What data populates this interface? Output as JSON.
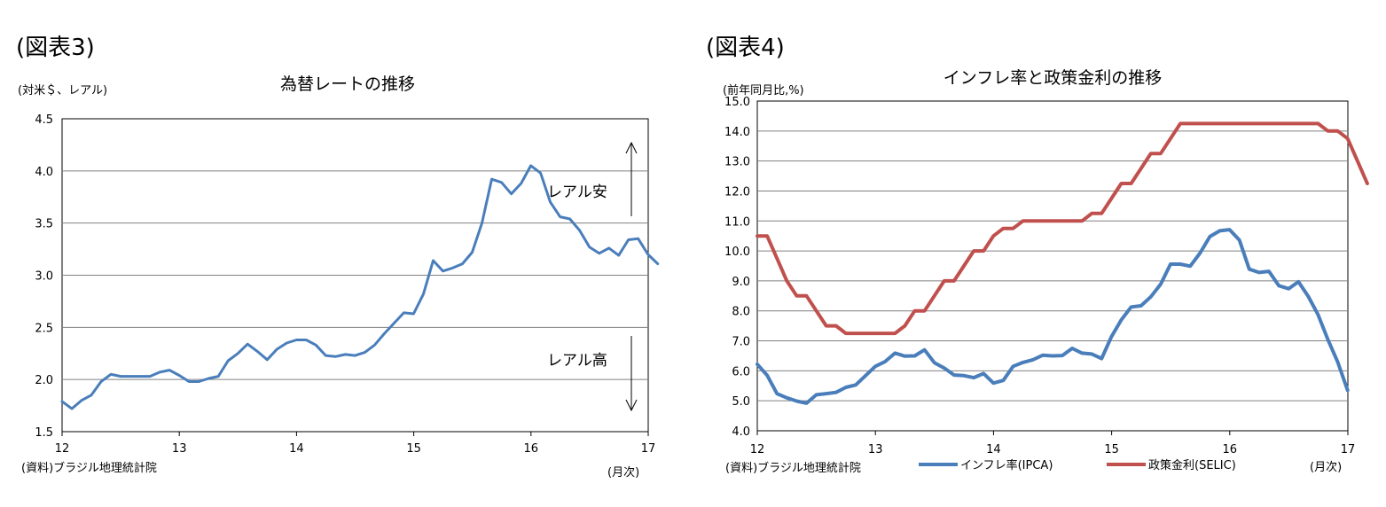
{
  "chart_data": [
    {
      "type": "line",
      "figure_label": "(図表3)",
      "title": "為替レートの推移",
      "unit_label": "(対米＄、レアル)",
      "source": "(資料)ブラジル地理統計院",
      "x_unit": "(月次)",
      "x_ticks": [
        "12",
        "13",
        "14",
        "15",
        "16",
        "17"
      ],
      "ylim": [
        1.5,
        4.5
      ],
      "y_ticks": [
        "1.5",
        "2.0",
        "2.5",
        "3.0",
        "3.5",
        "4.0",
        "4.5"
      ],
      "grid": true,
      "annotations": {
        "up_label": "レアル安",
        "down_label": "レアル高"
      },
      "series": [
        {
          "name": "",
          "color": "#4a7ebb",
          "x_start": 12.0,
          "x_step": 0.0833,
          "values": [
            1.79,
            1.72,
            1.8,
            1.85,
            1.98,
            2.05,
            2.03,
            2.03,
            2.03,
            2.03,
            2.07,
            2.09,
            2.04,
            1.98,
            1.98,
            2.01,
            2.03,
            2.18,
            2.25,
            2.34,
            2.27,
            2.19,
            2.29,
            2.35,
            2.38,
            2.38,
            2.33,
            2.23,
            2.22,
            2.24,
            2.23,
            2.26,
            2.33,
            2.44,
            2.54,
            2.64,
            2.63,
            2.82,
            3.14,
            3.04,
            3.07,
            3.11,
            3.22,
            3.5,
            3.92,
            3.89,
            3.78,
            3.88,
            4.05,
            3.98,
            3.7,
            3.56,
            3.54,
            3.43,
            3.27,
            3.21,
            3.26,
            3.19,
            3.34,
            3.35,
            3.2,
            3.11
          ]
        }
      ]
    },
    {
      "type": "line",
      "figure_label": "(図表4)",
      "title": "インフレ率と政策金利の推移",
      "unit_label": "(前年同月比,%)",
      "source": "(資料)ブラジル地理統計院",
      "x_unit": "(月次)",
      "x_ticks": [
        "12",
        "13",
        "14",
        "15",
        "16",
        "17"
      ],
      "ylim": [
        4.0,
        15.0
      ],
      "y_ticks": [
        "4.0",
        "5.0",
        "6.0",
        "7.0",
        "8.0",
        "9.0",
        "10.0",
        "11.0",
        "12.0",
        "13.0",
        "14.0",
        "15.0"
      ],
      "grid": true,
      "legend_position": "bottom",
      "series": [
        {
          "name": "インフレ率(IPCA)",
          "color": "#4a7ebb",
          "x_start": 12.0,
          "x_step": 0.0833,
          "values": [
            6.22,
            5.85,
            5.24,
            5.1,
            4.99,
            4.92,
            5.2,
            5.24,
            5.28,
            5.45,
            5.53,
            5.84,
            6.15,
            6.31,
            6.59,
            6.49,
            6.5,
            6.7,
            6.27,
            6.09,
            5.86,
            5.84,
            5.77,
            5.91,
            5.59,
            5.68,
            6.15,
            6.28,
            6.37,
            6.52,
            6.5,
            6.51,
            6.75,
            6.59,
            6.56,
            6.41,
            7.14,
            7.7,
            8.13,
            8.17,
            8.47,
            8.89,
            9.56,
            9.56,
            9.49,
            9.93,
            10.48,
            10.67,
            10.71,
            10.36,
            9.39,
            9.28,
            9.32,
            8.84,
            8.74,
            8.97,
            8.48,
            7.87,
            7.04,
            6.29,
            5.35
          ]
        },
        {
          "name": "政策金利(SELIC)",
          "color": "#c0504d",
          "x_start": 12.0,
          "x_step": 0.0833,
          "values": [
            10.5,
            10.5,
            9.75,
            9.0,
            8.5,
            8.5,
            8.0,
            7.5,
            7.5,
            7.25,
            7.25,
            7.25,
            7.25,
            7.25,
            7.25,
            7.5,
            8.0,
            8.0,
            8.5,
            9.0,
            9.0,
            9.5,
            10.0,
            10.0,
            10.5,
            10.75,
            10.75,
            11.0,
            11.0,
            11.0,
            11.0,
            11.0,
            11.0,
            11.0,
            11.25,
            11.25,
            11.75,
            12.25,
            12.25,
            12.75,
            13.25,
            13.25,
            13.75,
            14.25,
            14.25,
            14.25,
            14.25,
            14.25,
            14.25,
            14.25,
            14.25,
            14.25,
            14.25,
            14.25,
            14.25,
            14.25,
            14.25,
            14.25,
            14.0,
            14.0,
            13.75,
            13.0,
            12.25
          ]
        }
      ]
    }
  ]
}
